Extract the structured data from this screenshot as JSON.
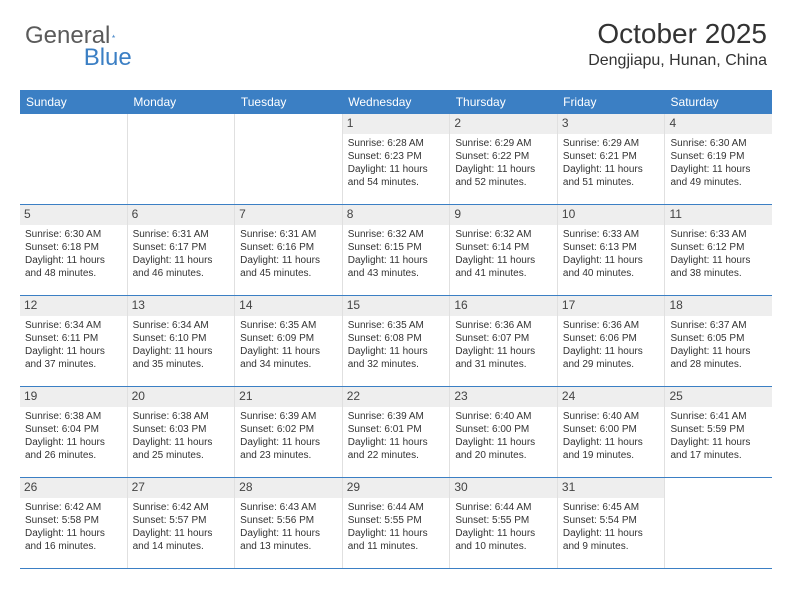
{
  "logo": {
    "text1": "General",
    "text2": "Blue"
  },
  "header": {
    "month": "October 2025",
    "location": "Dengjiapu, Hunan, China"
  },
  "colors": {
    "header_bg": "#3b7fc4",
    "header_text": "#ffffff",
    "row_divider": "#3b7fc4",
    "daynum_bg": "#eeeeee",
    "text": "#333333"
  },
  "dayNames": [
    "Sunday",
    "Monday",
    "Tuesday",
    "Wednesday",
    "Thursday",
    "Friday",
    "Saturday"
  ],
  "weeks": [
    [
      {
        "day": "",
        "sunrise": "",
        "sunset": "",
        "daylight": ""
      },
      {
        "day": "",
        "sunrise": "",
        "sunset": "",
        "daylight": ""
      },
      {
        "day": "",
        "sunrise": "",
        "sunset": "",
        "daylight": ""
      },
      {
        "day": "1",
        "sunrise": "Sunrise: 6:28 AM",
        "sunset": "Sunset: 6:23 PM",
        "daylight": "Daylight: 11 hours and 54 minutes."
      },
      {
        "day": "2",
        "sunrise": "Sunrise: 6:29 AM",
        "sunset": "Sunset: 6:22 PM",
        "daylight": "Daylight: 11 hours and 52 minutes."
      },
      {
        "day": "3",
        "sunrise": "Sunrise: 6:29 AM",
        "sunset": "Sunset: 6:21 PM",
        "daylight": "Daylight: 11 hours and 51 minutes."
      },
      {
        "day": "4",
        "sunrise": "Sunrise: 6:30 AM",
        "sunset": "Sunset: 6:19 PM",
        "daylight": "Daylight: 11 hours and 49 minutes."
      }
    ],
    [
      {
        "day": "5",
        "sunrise": "Sunrise: 6:30 AM",
        "sunset": "Sunset: 6:18 PM",
        "daylight": "Daylight: 11 hours and 48 minutes."
      },
      {
        "day": "6",
        "sunrise": "Sunrise: 6:31 AM",
        "sunset": "Sunset: 6:17 PM",
        "daylight": "Daylight: 11 hours and 46 minutes."
      },
      {
        "day": "7",
        "sunrise": "Sunrise: 6:31 AM",
        "sunset": "Sunset: 6:16 PM",
        "daylight": "Daylight: 11 hours and 45 minutes."
      },
      {
        "day": "8",
        "sunrise": "Sunrise: 6:32 AM",
        "sunset": "Sunset: 6:15 PM",
        "daylight": "Daylight: 11 hours and 43 minutes."
      },
      {
        "day": "9",
        "sunrise": "Sunrise: 6:32 AM",
        "sunset": "Sunset: 6:14 PM",
        "daylight": "Daylight: 11 hours and 41 minutes."
      },
      {
        "day": "10",
        "sunrise": "Sunrise: 6:33 AM",
        "sunset": "Sunset: 6:13 PM",
        "daylight": "Daylight: 11 hours and 40 minutes."
      },
      {
        "day": "11",
        "sunrise": "Sunrise: 6:33 AM",
        "sunset": "Sunset: 6:12 PM",
        "daylight": "Daylight: 11 hours and 38 minutes."
      }
    ],
    [
      {
        "day": "12",
        "sunrise": "Sunrise: 6:34 AM",
        "sunset": "Sunset: 6:11 PM",
        "daylight": "Daylight: 11 hours and 37 minutes."
      },
      {
        "day": "13",
        "sunrise": "Sunrise: 6:34 AM",
        "sunset": "Sunset: 6:10 PM",
        "daylight": "Daylight: 11 hours and 35 minutes."
      },
      {
        "day": "14",
        "sunrise": "Sunrise: 6:35 AM",
        "sunset": "Sunset: 6:09 PM",
        "daylight": "Daylight: 11 hours and 34 minutes."
      },
      {
        "day": "15",
        "sunrise": "Sunrise: 6:35 AM",
        "sunset": "Sunset: 6:08 PM",
        "daylight": "Daylight: 11 hours and 32 minutes."
      },
      {
        "day": "16",
        "sunrise": "Sunrise: 6:36 AM",
        "sunset": "Sunset: 6:07 PM",
        "daylight": "Daylight: 11 hours and 31 minutes."
      },
      {
        "day": "17",
        "sunrise": "Sunrise: 6:36 AM",
        "sunset": "Sunset: 6:06 PM",
        "daylight": "Daylight: 11 hours and 29 minutes."
      },
      {
        "day": "18",
        "sunrise": "Sunrise: 6:37 AM",
        "sunset": "Sunset: 6:05 PM",
        "daylight": "Daylight: 11 hours and 28 minutes."
      }
    ],
    [
      {
        "day": "19",
        "sunrise": "Sunrise: 6:38 AM",
        "sunset": "Sunset: 6:04 PM",
        "daylight": "Daylight: 11 hours and 26 minutes."
      },
      {
        "day": "20",
        "sunrise": "Sunrise: 6:38 AM",
        "sunset": "Sunset: 6:03 PM",
        "daylight": "Daylight: 11 hours and 25 minutes."
      },
      {
        "day": "21",
        "sunrise": "Sunrise: 6:39 AM",
        "sunset": "Sunset: 6:02 PM",
        "daylight": "Daylight: 11 hours and 23 minutes."
      },
      {
        "day": "22",
        "sunrise": "Sunrise: 6:39 AM",
        "sunset": "Sunset: 6:01 PM",
        "daylight": "Daylight: 11 hours and 22 minutes."
      },
      {
        "day": "23",
        "sunrise": "Sunrise: 6:40 AM",
        "sunset": "Sunset: 6:00 PM",
        "daylight": "Daylight: 11 hours and 20 minutes."
      },
      {
        "day": "24",
        "sunrise": "Sunrise: 6:40 AM",
        "sunset": "Sunset: 6:00 PM",
        "daylight": "Daylight: 11 hours and 19 minutes."
      },
      {
        "day": "25",
        "sunrise": "Sunrise: 6:41 AM",
        "sunset": "Sunset: 5:59 PM",
        "daylight": "Daylight: 11 hours and 17 minutes."
      }
    ],
    [
      {
        "day": "26",
        "sunrise": "Sunrise: 6:42 AM",
        "sunset": "Sunset: 5:58 PM",
        "daylight": "Daylight: 11 hours and 16 minutes."
      },
      {
        "day": "27",
        "sunrise": "Sunrise: 6:42 AM",
        "sunset": "Sunset: 5:57 PM",
        "daylight": "Daylight: 11 hours and 14 minutes."
      },
      {
        "day": "28",
        "sunrise": "Sunrise: 6:43 AM",
        "sunset": "Sunset: 5:56 PM",
        "daylight": "Daylight: 11 hours and 13 minutes."
      },
      {
        "day": "29",
        "sunrise": "Sunrise: 6:44 AM",
        "sunset": "Sunset: 5:55 PM",
        "daylight": "Daylight: 11 hours and 11 minutes."
      },
      {
        "day": "30",
        "sunrise": "Sunrise: 6:44 AM",
        "sunset": "Sunset: 5:55 PM",
        "daylight": "Daylight: 11 hours and 10 minutes."
      },
      {
        "day": "31",
        "sunrise": "Sunrise: 6:45 AM",
        "sunset": "Sunset: 5:54 PM",
        "daylight": "Daylight: 11 hours and 9 minutes."
      },
      {
        "day": "",
        "sunrise": "",
        "sunset": "",
        "daylight": ""
      }
    ]
  ]
}
